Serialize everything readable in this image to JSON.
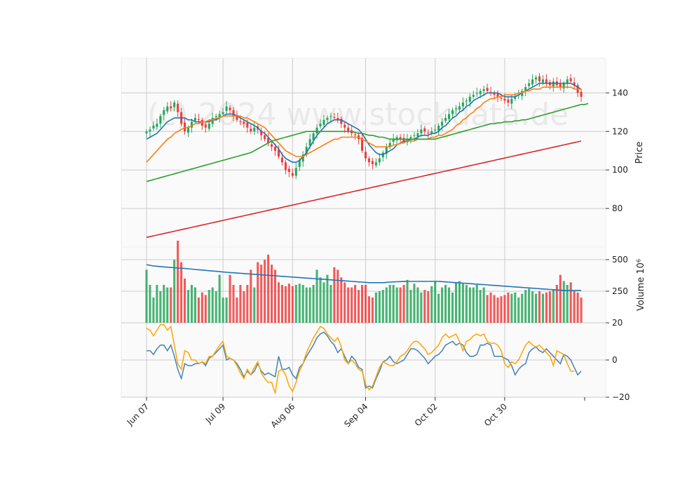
{
  "chart_data": {
    "type": "candlestick",
    "watermark": "(c) 2024 www.stockdata.de",
    "x_tick_labels": [
      "Jun 07",
      "Jul 09",
      "Aug 06",
      "Sep 04",
      "Oct 02",
      "Oct 30"
    ],
    "x_tick_indices": [
      0,
      22,
      42,
      63,
      83,
      103
    ],
    "num_bars": 126,
    "grid": true,
    "colors": {
      "up": "#26a65b",
      "down": "#f03c3c",
      "ma_fast": "#1f77b4",
      "ma_mid": "#ff7f0e",
      "ma_slow": "#2ca02c",
      "ma_long": "#d62728",
      "volume_ma": "#1f77b4",
      "osc_a": "#4682b4",
      "osc_b": "#ffa500",
      "panel_bg": "#fafafa",
      "grid": "#cccccc"
    },
    "price_panel": {
      "ylabel": "Price",
      "ylim": [
        60,
        158
      ],
      "yticks": [
        80,
        100,
        120,
        140
      ],
      "close": [
        120,
        121,
        123,
        124,
        128,
        131,
        133,
        132,
        135,
        130,
        124,
        120,
        122,
        125,
        127,
        126,
        123,
        122,
        124,
        127,
        128,
        129,
        130,
        133,
        131,
        128,
        126,
        125,
        124,
        122,
        120,
        122,
        121,
        118,
        116,
        114,
        112,
        110,
        107,
        104,
        100,
        99,
        97,
        101,
        105,
        108,
        112,
        116,
        119,
        122,
        124,
        126,
        127,
        128,
        127,
        126,
        124,
        122,
        120,
        119,
        118,
        116,
        110,
        106,
        104,
        103,
        104,
        106,
        109,
        112,
        114,
        116,
        117,
        116,
        115,
        116,
        117,
        118,
        119,
        121,
        120,
        119,
        120,
        121,
        123,
        125,
        127,
        129,
        131,
        132,
        133,
        135,
        136,
        138,
        139,
        140,
        141,
        142,
        141,
        140,
        139,
        138,
        137,
        136,
        135,
        137,
        138,
        139,
        141,
        143,
        145,
        147,
        148,
        146,
        147,
        145,
        144,
        146,
        144,
        143,
        145,
        147,
        146,
        144,
        140,
        138
      ],
      "ma": [
        {
          "values": [
            116,
            117,
            118,
            119,
            121,
            123,
            125,
            126,
            127,
            127,
            127,
            127,
            126,
            126,
            125,
            125,
            125,
            125,
            125,
            126,
            126,
            127,
            128,
            129,
            129,
            129,
            128,
            127,
            126,
            125,
            124,
            123,
            122,
            120,
            119,
            117,
            115,
            113,
            111,
            108,
            106,
            105,
            104,
            104,
            105,
            107,
            109,
            112,
            115,
            118,
            120,
            122,
            124,
            125,
            126,
            126,
            126,
            125,
            124,
            123,
            122,
            121,
            119,
            116,
            113,
            111,
            109,
            108,
            108,
            109,
            110,
            111,
            113,
            114,
            115,
            115,
            116,
            116,
            117,
            118,
            118,
            118,
            119,
            119,
            120,
            122,
            123,
            125,
            127,
            128,
            130,
            131,
            133,
            134,
            136,
            137,
            138,
            139,
            140,
            140,
            140,
            140,
            139,
            138,
            138,
            138,
            138,
            139,
            140,
            141,
            142,
            143,
            144,
            145,
            145,
            145,
            145,
            145,
            145,
            145,
            145,
            145,
            145,
            144,
            143,
            142
          ]
        },
        {
          "values": [
            104,
            106,
            108,
            110,
            112,
            114,
            116,
            117,
            119,
            120,
            121,
            122,
            122,
            123,
            124,
            124,
            125,
            125,
            126,
            126,
            127,
            127,
            128,
            128,
            128,
            128,
            128,
            128,
            127,
            127,
            126,
            125,
            124,
            123,
            122,
            120,
            118,
            116,
            114,
            112,
            110,
            109,
            108,
            107,
            107,
            107,
            108,
            109,
            110,
            111,
            112,
            113,
            114,
            115,
            116,
            116,
            117,
            117,
            117,
            117,
            117,
            117,
            116,
            115,
            114,
            113,
            112,
            112,
            112,
            112,
            112,
            113,
            113,
            114,
            114,
            115,
            115,
            115,
            116,
            116,
            116,
            116,
            117,
            117,
            118,
            118,
            119,
            120,
            121,
            123,
            124,
            126,
            127,
            129,
            130,
            132,
            133,
            135,
            136,
            137,
            137,
            138,
            138,
            139,
            139,
            139,
            139,
            140,
            140,
            141,
            141,
            142,
            142,
            142,
            143,
            143,
            143,
            143,
            143,
            143,
            143,
            143,
            143,
            142,
            142,
            142
          ]
        },
        {
          "values": [
            94,
            94.5,
            95,
            95.5,
            96,
            96.5,
            97,
            97.5,
            98,
            98.5,
            99,
            99.5,
            100,
            100.5,
            101,
            101.5,
            102,
            102.5,
            103,
            103.5,
            104,
            104.5,
            105,
            105.5,
            106,
            106.5,
            107,
            107.5,
            108,
            108.5,
            109,
            110,
            111,
            112,
            113,
            114,
            115,
            115.5,
            116,
            116.5,
            117,
            117.5,
            118,
            118.5,
            119,
            119.5,
            120,
            120,
            120,
            120,
            120,
            120,
            120,
            120,
            120,
            120,
            120,
            120,
            120,
            120,
            119.5,
            119,
            119,
            118.5,
            118,
            118,
            117.5,
            117,
            117,
            116.5,
            116,
            116,
            116,
            116,
            116,
            116,
            116,
            116,
            116,
            116,
            116,
            116,
            116,
            116,
            116.5,
            117,
            117.5,
            118,
            118.5,
            119,
            119.5,
            120,
            120.5,
            121,
            121.5,
            122,
            122.5,
            123,
            123.5,
            124,
            124,
            124.5,
            124.5,
            125,
            125,
            125,
            125.5,
            125.5,
            126,
            126,
            126.5,
            127,
            127.5,
            128,
            128.5,
            129,
            129.5,
            130,
            130.5,
            131,
            131.5,
            132,
            132.5,
            133,
            133.5,
            134,
            134,
            134.5
          ]
        },
        {
          "values": [
            65,
            65.4,
            65.8,
            66.2,
            66.6,
            67,
            67.4,
            67.8,
            68.2,
            68.6,
            69,
            69.4,
            69.8,
            70.2,
            70.6,
            71,
            71.4,
            71.8,
            72.2,
            72.6,
            73,
            73.4,
            73.8,
            74.2,
            74.6,
            75,
            75.4,
            75.8,
            76.2,
            76.6,
            77,
            77.4,
            77.8,
            78.2,
            78.6,
            79,
            79.4,
            79.8,
            80.2,
            80.6,
            81,
            81.4,
            81.8,
            82.2,
            82.6,
            83,
            83.4,
            83.8,
            84.2,
            84.6,
            85,
            85.4,
            85.8,
            86.2,
            86.6,
            87,
            87.4,
            87.8,
            88.2,
            88.6,
            89,
            89.4,
            89.8,
            90.2,
            90.6,
            91,
            91.4,
            91.8,
            92.2,
            92.6,
            93,
            93.4,
            93.8,
            94.2,
            94.6,
            95,
            95.4,
            95.8,
            96.2,
            96.6,
            97,
            97.4,
            97.8,
            98.2,
            98.6,
            99,
            99.4,
            99.8,
            100.2,
            100.6,
            101,
            101.4,
            101.8,
            102.2,
            102.6,
            103,
            103.4,
            103.8,
            104.2,
            104.6,
            105,
            105.4,
            105.8,
            106.2,
            106.6,
            107,
            107.4,
            107.8,
            108.2,
            108.6,
            109,
            109.4,
            109.8,
            110.2,
            110.6,
            111,
            111.4,
            111.8,
            112.2,
            112.6,
            113,
            113.4,
            113.8,
            114.2,
            114.6,
            115
          ]
        }
      ]
    },
    "volume_panel": {
      "ylabel": "Volume",
      "ylabel_exponent": "10⁶",
      "ylim": [
        0,
        600
      ],
      "yticks": [
        250,
        500
      ],
      "values": [
        420,
        300,
        200,
        300,
        250,
        300,
        280,
        280,
        500,
        650,
        480,
        350,
        260,
        300,
        280,
        200,
        240,
        220,
        260,
        280,
        250,
        380,
        200,
        200,
        380,
        300,
        200,
        300,
        250,
        300,
        420,
        280,
        480,
        460,
        500,
        540,
        460,
        420,
        320,
        300,
        290,
        310,
        290,
        300,
        310,
        300,
        280,
        280,
        300,
        420,
        360,
        320,
        380,
        300,
        440,
        420,
        360,
        320,
        280,
        280,
        300,
        260,
        300,
        300,
        210,
        200,
        240,
        250,
        260,
        280,
        300,
        300,
        280,
        280,
        300,
        340,
        260,
        310,
        280,
        240,
        260,
        250,
        290,
        330,
        230,
        280,
        300,
        280,
        240,
        320,
        330,
        310,
        300,
        280,
        280,
        300,
        260,
        280,
        220,
        240,
        220,
        200,
        210,
        220,
        240,
        230,
        240,
        200,
        230,
        260,
        270,
        250,
        230,
        250,
        230,
        240,
        250,
        260,
        300,
        380,
        330,
        300,
        320,
        250,
        240,
        200
      ],
      "ma_values": [
        460,
        455,
        450,
        448,
        445,
        443,
        440,
        438,
        436,
        434,
        432,
        430,
        428,
        425,
        422,
        420,
        418,
        415,
        412,
        410,
        408,
        405,
        402,
        400,
        398,
        396,
        394,
        392,
        390,
        388,
        386,
        384,
        382,
        380,
        378,
        376,
        374,
        372,
        370,
        368,
        366,
        364,
        362,
        360,
        358,
        356,
        354,
        352,
        350,
        348,
        346,
        344,
        342,
        340,
        338,
        336,
        334,
        332,
        330,
        328,
        326,
        324,
        322,
        320,
        318,
        318,
        318,
        318,
        318,
        320,
        322,
        324,
        325,
        326,
        327,
        328,
        328,
        328,
        328,
        328,
        328,
        328,
        328,
        328,
        328,
        326,
        324,
        322,
        320,
        318,
        316,
        314,
        312,
        310,
        308,
        306,
        304,
        302,
        300,
        298,
        296,
        294,
        292,
        290,
        288,
        286,
        284,
        282,
        280,
        278,
        276,
        274,
        272,
        270,
        268,
        266,
        264,
        262,
        260,
        258,
        256,
        256,
        256,
        256,
        256,
        256
      ]
    },
    "oscillator_panel": {
      "ylim": [
        -20,
        20
      ],
      "yticks": [
        -20,
        0,
        20
      ],
      "series": [
        {
          "values": [
            5,
            5,
            3,
            6,
            8,
            8,
            5,
            8,
            2,
            -5,
            -10,
            -2,
            -3,
            -3,
            -2,
            -2,
            -1,
            -3,
            1,
            2,
            4,
            6,
            8,
            0,
            1,
            0,
            -2,
            -5,
            -9,
            -6,
            -8,
            -6,
            -2,
            -6,
            -8,
            -7,
            -8,
            -9,
            2,
            -5,
            -5,
            -4,
            -8,
            -10,
            -4,
            -2,
            2,
            5,
            8,
            12,
            14,
            15,
            13,
            10,
            8,
            4,
            6,
            2,
            -2,
            2,
            0,
            -4,
            -5,
            -15,
            -14,
            -15,
            -10,
            -6,
            -1,
            0,
            2,
            -1,
            -2,
            -1,
            0,
            3,
            6,
            6,
            5,
            3,
            1,
            -2,
            0,
            2,
            3,
            5,
            8,
            9,
            10,
            8,
            9,
            8,
            4,
            2,
            2,
            3,
            8,
            8,
            9,
            8,
            2,
            2,
            2,
            1,
            0,
            -3,
            -8,
            -5,
            -3,
            -2,
            4,
            6,
            7,
            5,
            4,
            6,
            4,
            2,
            0,
            -2,
            3,
            2,
            0,
            -4,
            -8,
            -6
          ]
        },
        {
          "values": [
            17,
            16,
            13,
            16,
            19,
            19,
            16,
            18,
            8,
            -2,
            -5,
            5,
            4,
            0,
            0,
            -2,
            -1,
            -2,
            2,
            2,
            5,
            8,
            10,
            2,
            1,
            0,
            -3,
            -7,
            -10,
            -5,
            -8,
            -4,
            -1,
            -7,
            -10,
            -12,
            -12,
            -18,
            -6,
            -5,
            -8,
            -14,
            -17,
            -12,
            -6,
            -2,
            4,
            8,
            12,
            15,
            18,
            17,
            14,
            12,
            10,
            12,
            7,
            0,
            -2,
            0,
            -2,
            -5,
            -6,
            -13,
            -16,
            -14,
            -9,
            -4,
            -1,
            -2,
            -3,
            -3,
            -1,
            2,
            3,
            5,
            8,
            10,
            10,
            8,
            6,
            3,
            4,
            6,
            8,
            12,
            14,
            12,
            13,
            14,
            10,
            5,
            10,
            11,
            13,
            14,
            13,
            14,
            10,
            9,
            9,
            8,
            5,
            -2,
            -4,
            -1,
            -2,
            0,
            4,
            8,
            10,
            8,
            7,
            8,
            6,
            4,
            2,
            -3,
            5,
            4,
            3,
            -2,
            -6,
            -6
          ]
        }
      ]
    }
  }
}
